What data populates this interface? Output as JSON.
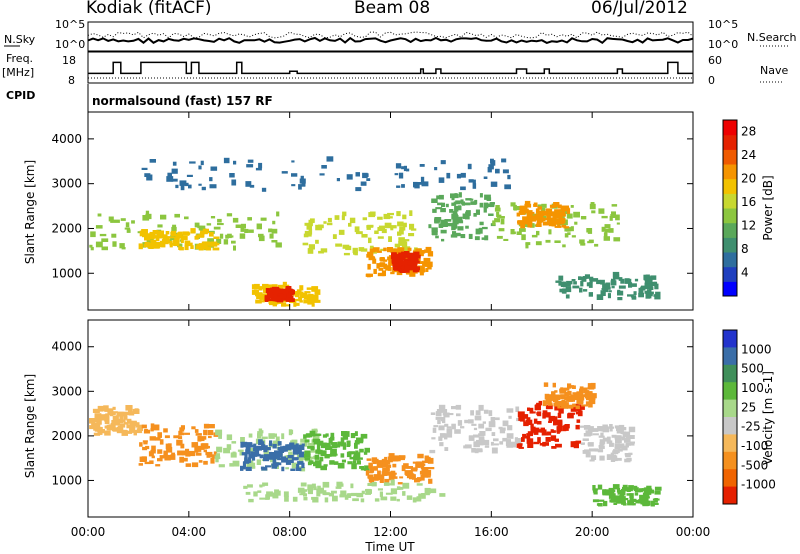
{
  "header": {
    "station": "Kodiak (fitACF)",
    "beam": "Beam 08",
    "date": "06/Jul/2012"
  },
  "top_panels": {
    "nsky_label": "N.Sky",
    "nsky_ticks": [
      "10^5",
      "10^0"
    ],
    "nsearch_label": "N.Search",
    "nsearch_ticks": [
      "10^5",
      "10^0"
    ],
    "freq_label": "Freq.",
    "freq_unit": "[MHz]",
    "freq_ticks": [
      "18",
      "8"
    ],
    "nave_label": "Nave",
    "nave_ticks": [
      "60",
      "0"
    ],
    "cpid_label": "CPID",
    "cpid_text": "normalsound (fast) 157 RF",
    "freq_steps": [
      [
        0,
        11
      ],
      [
        1.0,
        16
      ],
      [
        1.3,
        11
      ],
      [
        2.1,
        16
      ],
      [
        3.9,
        11
      ],
      [
        4.1,
        16
      ],
      [
        4.4,
        11
      ],
      [
        5.9,
        16
      ],
      [
        6.1,
        11
      ],
      [
        7.9,
        11
      ],
      [
        8.0,
        12
      ],
      [
        8.3,
        11
      ],
      [
        12.7,
        11
      ],
      [
        13.2,
        13
      ],
      [
        13.3,
        11
      ],
      [
        13.8,
        13
      ],
      [
        14.0,
        11
      ],
      [
        16.9,
        11
      ],
      [
        17.0,
        13
      ],
      [
        17.4,
        11
      ],
      [
        18.1,
        13
      ],
      [
        18.3,
        11
      ],
      [
        21.0,
        13
      ],
      [
        21.2,
        11
      ],
      [
        22.9,
        11
      ],
      [
        23.0,
        16
      ],
      [
        23.4,
        11
      ],
      [
        24,
        11
      ]
    ]
  },
  "chart_data": [
    {
      "type": "heatmap",
      "name": "power",
      "ylabel": "Slant Range [km]",
      "y_ticks": [
        "1000",
        "2000",
        "3000",
        "4000"
      ],
      "ylim": [
        180,
        4600
      ],
      "xlim": [
        0,
        24
      ],
      "colorbar": {
        "label": "Power [dB]",
        "ticks": [
          "4",
          "8",
          "12",
          "16",
          "20",
          "24",
          "28"
        ],
        "range": [
          0,
          30
        ],
        "colors": [
          "#0000ff",
          "#1f3fbf",
          "#2e6e9e",
          "#3f8f6f",
          "#5aa85a",
          "#8cc63f",
          "#c8d830",
          "#f2c200",
          "#f59400",
          "#ef5a00",
          "#e52200",
          "#ee0000"
        ]
      },
      "regions": [
        {
          "t": [
            0.0,
            7.5
          ],
          "r": [
            1500,
            2300
          ],
          "v": 13
        },
        {
          "t": [
            2.0,
            5.0
          ],
          "r": [
            1500,
            1900
          ],
          "v": 19
        },
        {
          "t": [
            6.5,
            9.0
          ],
          "r": [
            250,
            700
          ],
          "v": 18
        },
        {
          "t": [
            7.0,
            8.0
          ],
          "r": [
            350,
            600
          ],
          "v": 26
        },
        {
          "t": [
            8.5,
            13.0
          ],
          "r": [
            1400,
            2300
          ],
          "v": 15
        },
        {
          "t": [
            11.0,
            13.5
          ],
          "r": [
            900,
            1500
          ],
          "v": 21
        },
        {
          "t": [
            12.0,
            13.0
          ],
          "r": [
            1000,
            1400
          ],
          "v": 27
        },
        {
          "t": [
            13.5,
            16.0
          ],
          "r": [
            1700,
            2700
          ],
          "v": 11
        },
        {
          "t": [
            16.0,
            21.0
          ],
          "r": [
            1500,
            2500
          ],
          "v": 13
        },
        {
          "t": [
            17.0,
            19.0
          ],
          "r": [
            2000,
            2500
          ],
          "v": 20
        },
        {
          "t": [
            18.5,
            22.5
          ],
          "r": [
            400,
            900
          ],
          "v": 8
        },
        {
          "t": [
            2.0,
            17.0
          ],
          "r": [
            2800,
            3500
          ],
          "v": 7
        }
      ]
    },
    {
      "type": "heatmap",
      "name": "velocity",
      "ylabel": "Slant Range [km]",
      "y_ticks": [
        "1000",
        "2000",
        "3000",
        "4000"
      ],
      "ylim": [
        180,
        4600
      ],
      "xlim": [
        0,
        24
      ],
      "x_ticks": [
        "00:00",
        "04:00",
        "08:00",
        "12:00",
        "16:00",
        "20:00",
        "00:00"
      ],
      "xlabel": "Time UT",
      "colorbar": {
        "label": "Velocity [m s-1]",
        "ticks": [
          "1000",
          "500",
          "100",
          "25",
          "-25",
          "-100",
          "-500",
          "-1000"
        ],
        "colors": [
          "#2233cc",
          "#3a6ea8",
          "#3f8f5a",
          "#5cb83a",
          "#a8d88a",
          "#c8c8c8",
          "#f5b85a",
          "#f5901e",
          "#f06400",
          "#e52000"
        ]
      },
      "regions": [
        {
          "t": [
            0.0,
            2.0
          ],
          "r": [
            2000,
            2600
          ],
          "v": "-100"
        },
        {
          "t": [
            2.0,
            5.0
          ],
          "r": [
            1300,
            2200
          ],
          "v": "-500"
        },
        {
          "t": [
            5.0,
            9.0
          ],
          "r": [
            1200,
            2100
          ],
          "v": "25"
        },
        {
          "t": [
            6.0,
            8.5
          ],
          "r": [
            1200,
            1800
          ],
          "v": "500"
        },
        {
          "t": [
            8.5,
            11.0
          ],
          "r": [
            1200,
            2000
          ],
          "v": "100"
        },
        {
          "t": [
            11.0,
            13.5
          ],
          "r": [
            900,
            1500
          ],
          "v": "-500"
        },
        {
          "t": [
            6.0,
            14.0
          ],
          "r": [
            500,
            900
          ],
          "v": "25"
        },
        {
          "t": [
            13.5,
            17.0
          ],
          "r": [
            1600,
            2600
          ],
          "v": "-25"
        },
        {
          "t": [
            17.0,
            19.5
          ],
          "r": [
            1700,
            2700
          ],
          "v": "-1000"
        },
        {
          "t": [
            19.5,
            21.5
          ],
          "r": [
            1400,
            2200
          ],
          "v": "-25"
        },
        {
          "t": [
            20.0,
            22.5
          ],
          "r": [
            400,
            800
          ],
          "v": "100"
        },
        {
          "t": [
            18.0,
            20.0
          ],
          "r": [
            2600,
            3100
          ],
          "v": "-500"
        }
      ]
    }
  ]
}
